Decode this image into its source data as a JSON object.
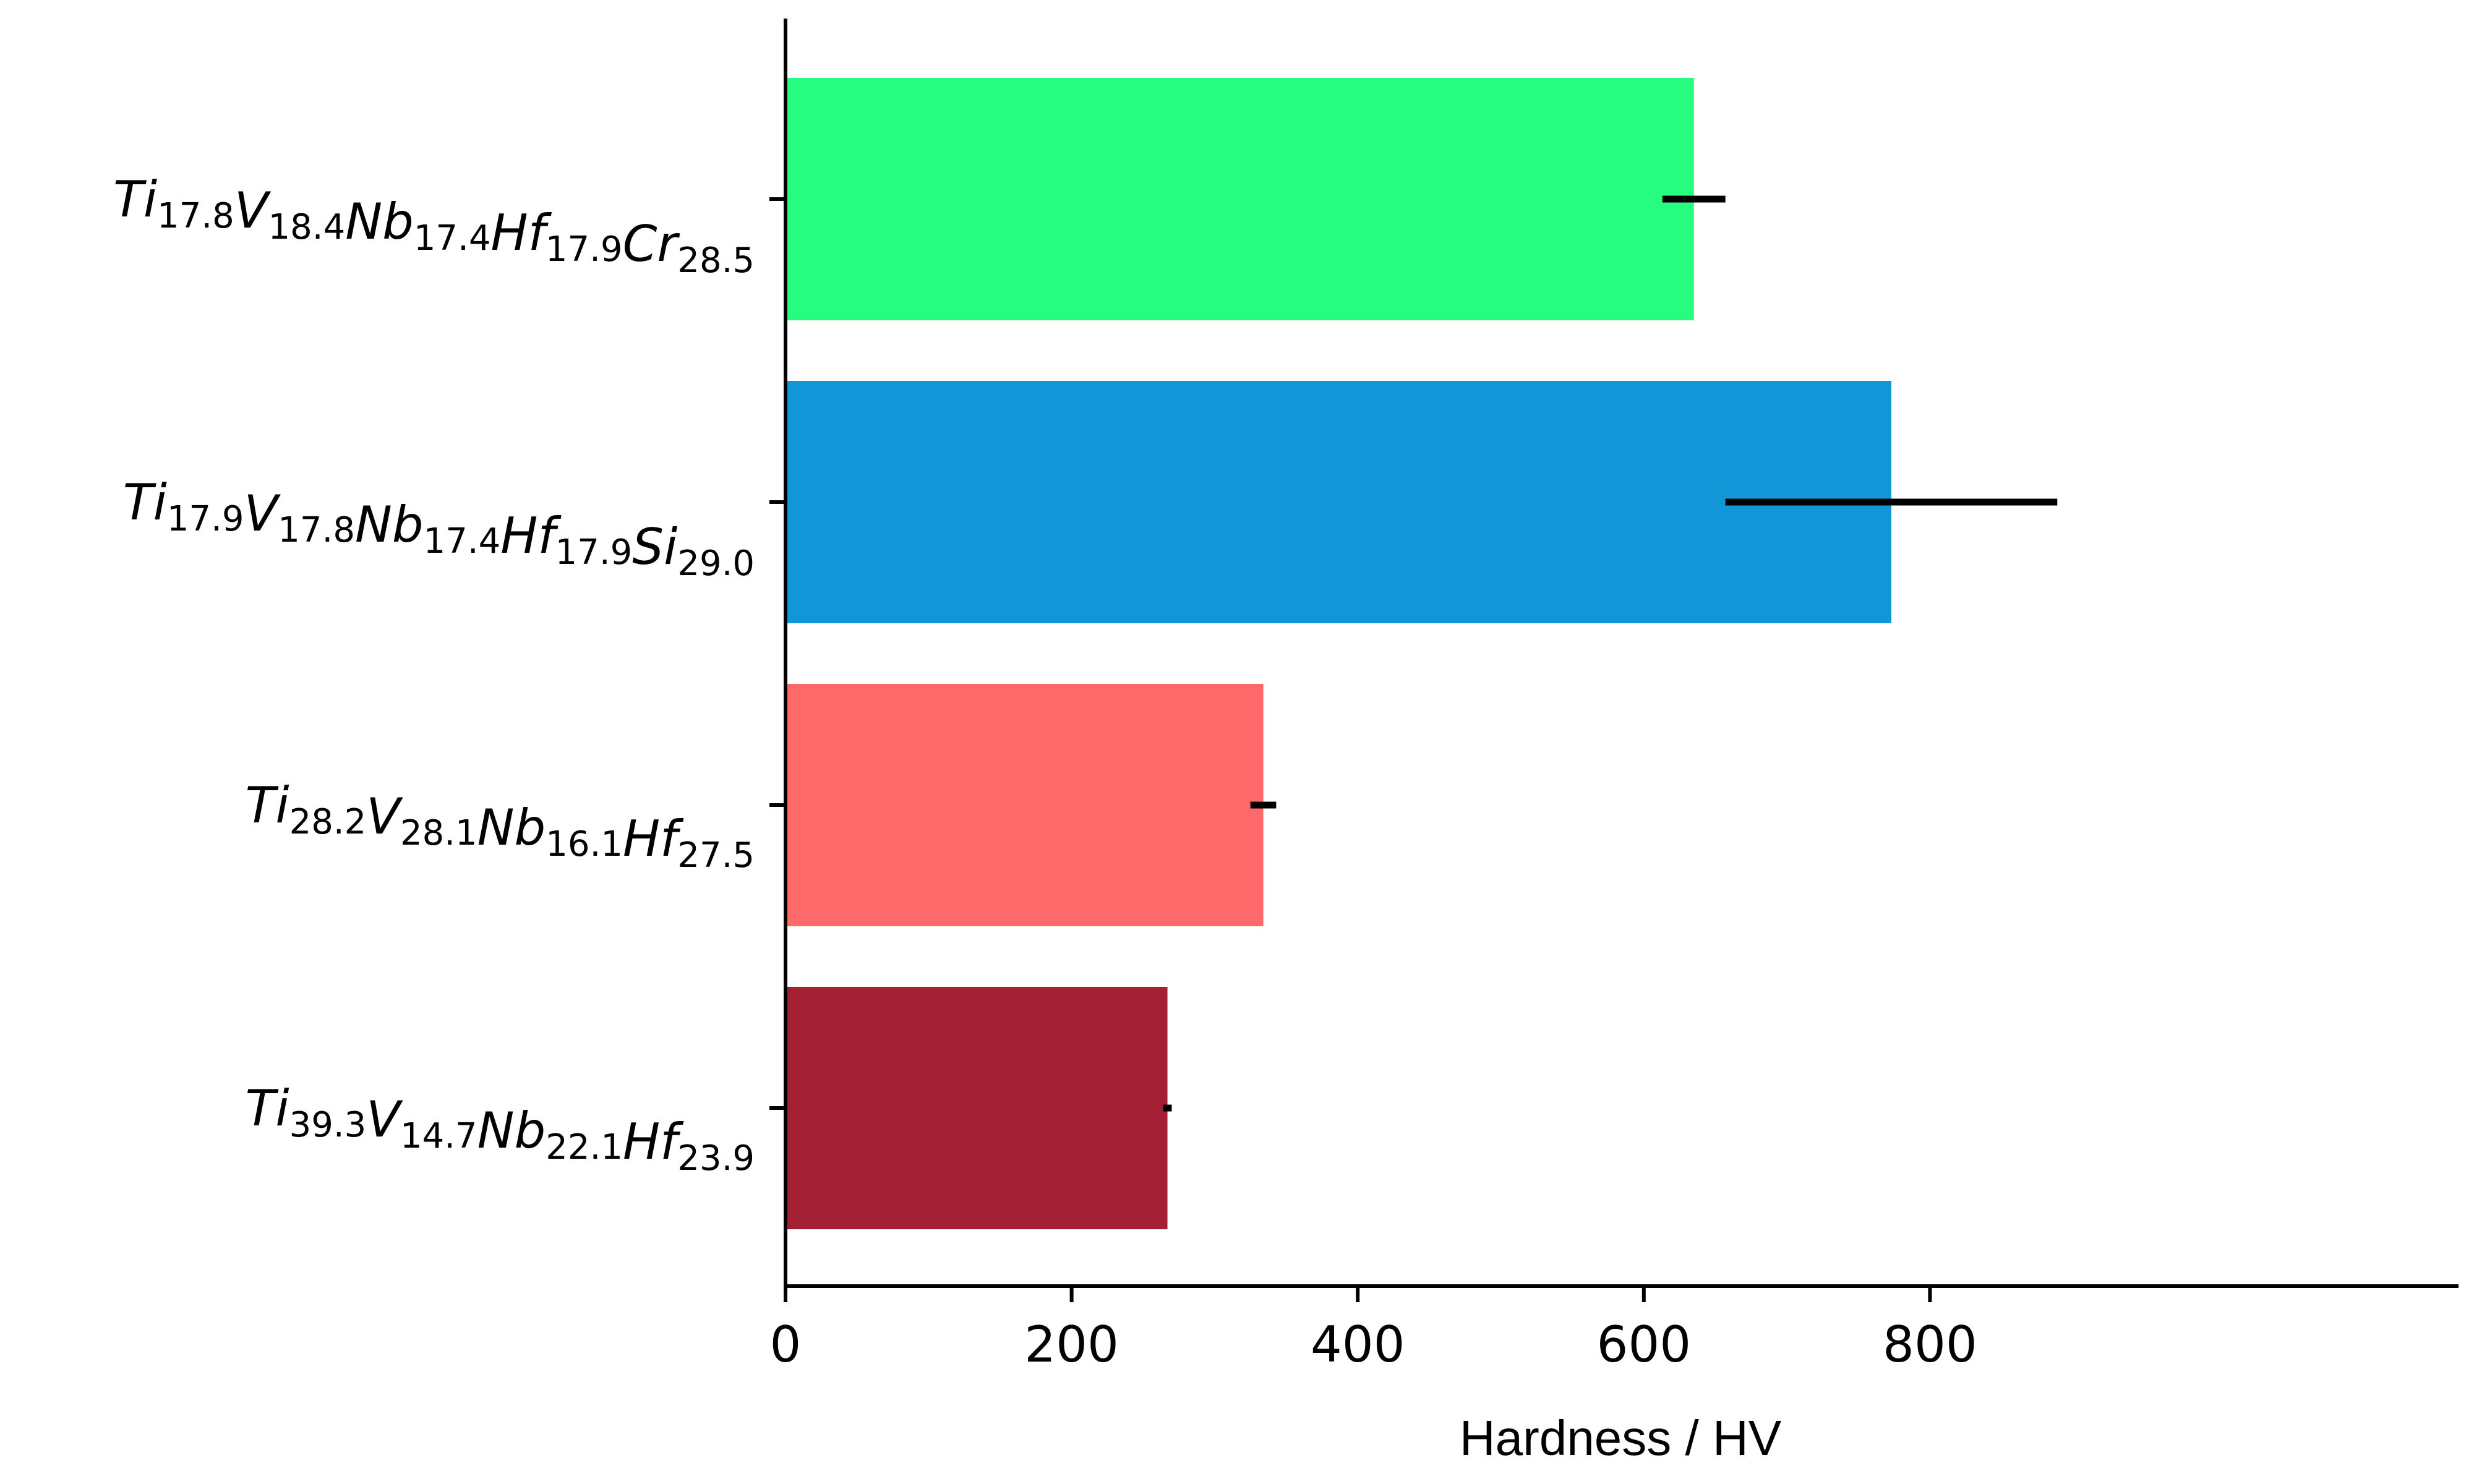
{
  "chart_data": {
    "type": "bar",
    "orientation": "horizontal",
    "xlabel": "Hardness / HV",
    "ylabel": "",
    "xlim": [
      0,
      935
    ],
    "xticks": [
      "0",
      "200",
      "400",
      "600",
      "800"
    ],
    "grid": false,
    "legend": "none",
    "categories": [
      {
        "label": "Ti17.8V18.4Nb17.4Hf17.9Cr28.5",
        "parts": [
          [
            "Ti",
            "17.8"
          ],
          [
            "V",
            "18.4"
          ],
          [
            "Nb",
            "17.4"
          ],
          [
            "Hf",
            "17.9"
          ],
          [
            "Cr",
            "28.5"
          ]
        ]
      },
      {
        "label": "Ti17.9V17.8Nb17.4Hf17.9Si29.0",
        "parts": [
          [
            "Ti",
            "17.9"
          ],
          [
            "V",
            "17.8"
          ],
          [
            "Nb",
            "17.4"
          ],
          [
            "Hf",
            "17.9"
          ],
          [
            "Si",
            "29.0"
          ]
        ]
      },
      {
        "label": "Ti28.2V28.1Nb16.1Hf27.5",
        "parts": [
          [
            "Ti",
            "28.2"
          ],
          [
            "V",
            "28.1"
          ],
          [
            "Nb",
            "16.1"
          ],
          [
            "Hf",
            "27.5"
          ]
        ]
      },
      {
        "label": "Ti39.3V14.7Nb22.1Hf23.9",
        "parts": [
          [
            "Ti",
            "39.3"
          ],
          [
            "V",
            "14.7"
          ],
          [
            "Nb",
            "22.1"
          ],
          [
            "Hf",
            "23.9"
          ]
        ]
      }
    ],
    "values": [
      635,
      773,
      334,
      267
    ],
    "errors": [
      22,
      116,
      9,
      3
    ],
    "colors": [
      "#26fc80",
      "#1296d8",
      "#ff6969",
      "#a21f34"
    ]
  }
}
